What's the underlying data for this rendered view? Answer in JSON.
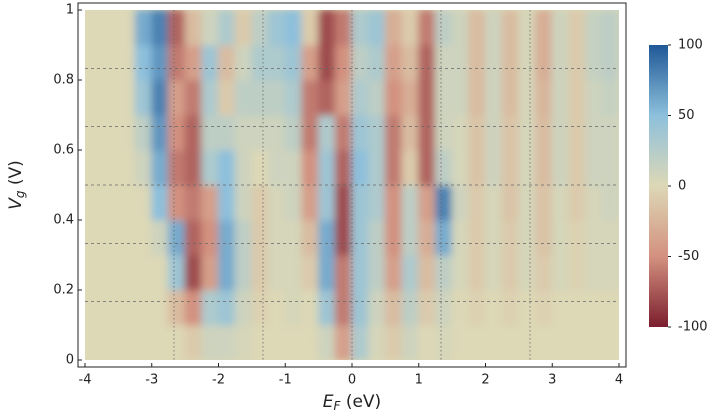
{
  "chart_data": {
    "type": "heatmap",
    "xlabel": [
      "E",
      "F",
      " (eV)"
    ],
    "ylabel": [
      "V",
      "g",
      " (V)"
    ],
    "xlim": [
      -4,
      4
    ],
    "ylim": [
      0,
      1
    ],
    "xticks": [
      -4,
      -3,
      -2,
      -1,
      0,
      1,
      2,
      3,
      4
    ],
    "yticks": [
      0,
      0.2,
      0.4,
      0.6,
      0.8,
      1
    ],
    "x": [
      -3.875,
      -3.625,
      -3.375,
      -3.125,
      -2.875,
      -2.625,
      -2.375,
      -2.125,
      -1.875,
      -1.625,
      -1.375,
      -1.125,
      -0.875,
      -0.625,
      -0.375,
      -0.125,
      0.125,
      0.375,
      0.625,
      0.875,
      1.125,
      1.375,
      1.625,
      1.875,
      2.125,
      2.375,
      2.625,
      2.875,
      3.125,
      3.375,
      3.625,
      3.875
    ],
    "y": [
      0.05,
      0.15,
      0.25,
      0.35,
      0.45,
      0.55,
      0.65,
      0.75,
      0.85,
      0.95
    ],
    "z": [
      [
        0,
        0,
        0,
        0,
        0,
        0,
        -10,
        10,
        10,
        5,
        0,
        0,
        0,
        0,
        10,
        -40,
        30,
        5,
        -10,
        10,
        0,
        5,
        0,
        0,
        0,
        0,
        0,
        0,
        0,
        0,
        0,
        0
      ],
      [
        0,
        0,
        0,
        0,
        0,
        -20,
        -50,
        30,
        40,
        10,
        -5,
        0,
        5,
        0,
        40,
        -60,
        40,
        10,
        -20,
        20,
        -10,
        10,
        0,
        -5,
        0,
        -5,
        0,
        -5,
        0,
        0,
        0,
        0
      ],
      [
        0,
        0,
        0,
        0,
        0,
        40,
        -80,
        -40,
        60,
        20,
        -10,
        5,
        5,
        -10,
        60,
        -60,
        40,
        20,
        -40,
        30,
        -20,
        20,
        5,
        -10,
        5,
        -10,
        5,
        -10,
        5,
        -5,
        5,
        5
      ],
      [
        0,
        0,
        0,
        0,
        10,
        60,
        -70,
        -50,
        60,
        20,
        -10,
        5,
        5,
        -20,
        60,
        -80,
        40,
        20,
        -50,
        20,
        -30,
        60,
        5,
        -10,
        5,
        -10,
        5,
        -15,
        5,
        -5,
        5,
        5
      ],
      [
        0,
        0,
        0,
        0,
        50,
        -50,
        -60,
        -40,
        50,
        10,
        -10,
        5,
        10,
        -40,
        40,
        -80,
        40,
        30,
        -50,
        20,
        -40,
        80,
        10,
        -10,
        5,
        -15,
        5,
        -15,
        5,
        -10,
        5,
        10
      ],
      [
        0,
        0,
        0,
        10,
        60,
        -60,
        -70,
        30,
        50,
        10,
        0,
        10,
        10,
        -50,
        40,
        -70,
        50,
        30,
        -60,
        -10,
        -70,
        20,
        5,
        -15,
        10,
        -15,
        5,
        -20,
        10,
        -10,
        10,
        10
      ],
      [
        0,
        0,
        0,
        20,
        70,
        -50,
        -70,
        20,
        20,
        10,
        10,
        10,
        20,
        -60,
        30,
        -60,
        40,
        30,
        -60,
        -20,
        -70,
        10,
        5,
        -15,
        10,
        -15,
        5,
        -20,
        10,
        -10,
        10,
        10
      ],
      [
        0,
        0,
        0,
        40,
        80,
        -40,
        -60,
        30,
        -10,
        20,
        20,
        20,
        30,
        -60,
        -70,
        -40,
        30,
        20,
        -50,
        -30,
        -70,
        10,
        10,
        -20,
        10,
        -20,
        5,
        -25,
        10,
        -10,
        10,
        15
      ],
      [
        0,
        0,
        0,
        50,
        70,
        -60,
        -40,
        40,
        -20,
        10,
        30,
        30,
        40,
        -40,
        -80,
        -50,
        20,
        30,
        -40,
        -20,
        -70,
        10,
        10,
        -20,
        10,
        -20,
        5,
        -30,
        10,
        -10,
        15,
        20
      ],
      [
        0,
        0,
        0,
        60,
        80,
        -70,
        -20,
        10,
        30,
        -10,
        20,
        40,
        50,
        -10,
        -80,
        -60,
        30,
        40,
        -30,
        -10,
        -60,
        20,
        10,
        -20,
        10,
        -20,
        5,
        -30,
        10,
        -10,
        15,
        20
      ]
    ],
    "hlines": [
      0.1667,
      0.3333,
      0.5,
      0.6667,
      0.8333
    ],
    "vlines": [
      -2.6667,
      -1.3333,
      0,
      1.3333,
      2.6667
    ],
    "colorscale": [
      {
        "value": -100,
        "color": "#7b1e2e"
      },
      {
        "value": -50,
        "color": "#d3917f"
      },
      {
        "value": 0,
        "color": "#ddd8b6"
      },
      {
        "value": 50,
        "color": "#8dc0dc"
      },
      {
        "value": 100,
        "color": "#1f5896"
      }
    ],
    "clim": [
      -100,
      100
    ],
    "cticks": [
      -100,
      -50,
      0,
      50,
      100
    ]
  }
}
